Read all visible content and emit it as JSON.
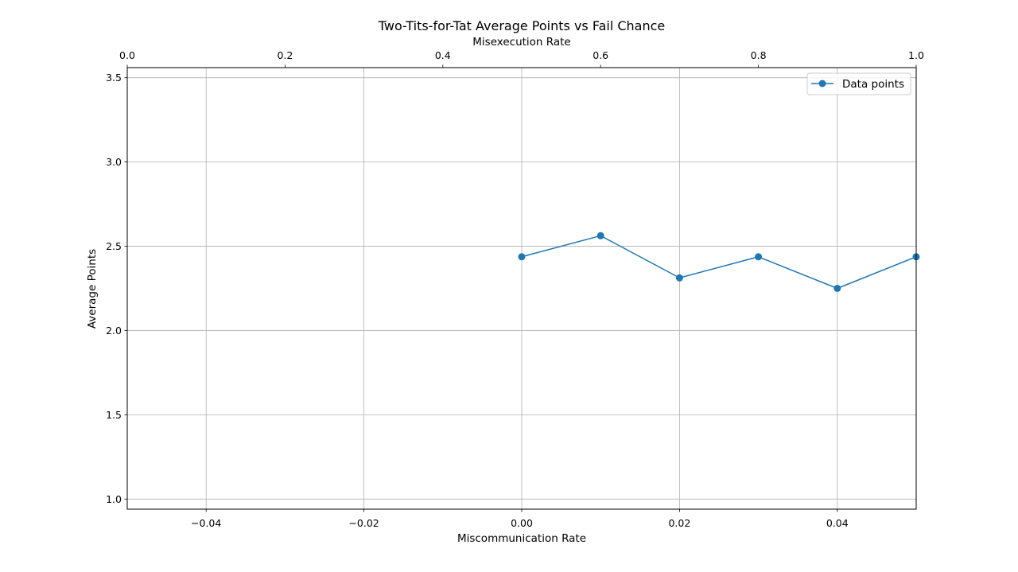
{
  "chart_data": {
    "type": "line",
    "title": "Two-Tits-for-Tat Average Points vs Fail Chance",
    "xlabel": "Miscommunication Rate",
    "ylabel": "Average Points",
    "top_xlabel": "Misexecution Rate",
    "xlim": [
      -0.05,
      0.05
    ],
    "ylim": [
      0.94,
      3.56
    ],
    "top_xlim": [
      0.0,
      1.0
    ],
    "x_ticks": [
      -0.04,
      -0.02,
      0.0,
      0.02,
      0.04
    ],
    "x_tick_labels": [
      "−0.04",
      "−0.02",
      "0.00",
      "0.02",
      "0.04"
    ],
    "top_x_ticks": [
      0.0,
      0.2,
      0.4,
      0.6,
      0.8,
      1.0
    ],
    "top_x_tick_labels": [
      "0.0",
      "0.2",
      "0.4",
      "0.6",
      "0.8",
      "1.0"
    ],
    "y_ticks": [
      1.0,
      1.5,
      2.0,
      2.5,
      3.0,
      3.5
    ],
    "y_tick_labels": [
      "1.0",
      "1.5",
      "2.0",
      "2.5",
      "3.0",
      "3.5"
    ],
    "grid": true,
    "legend_position": "top-right",
    "series": [
      {
        "name": "Data points",
        "color": "#1f77b4",
        "marker": "circle",
        "x": [
          0.0,
          0.01,
          0.02,
          0.03,
          0.04,
          0.05
        ],
        "y": [
          2.4375,
          2.5625,
          2.3125,
          2.4375,
          2.25,
          2.4375
        ]
      }
    ]
  }
}
